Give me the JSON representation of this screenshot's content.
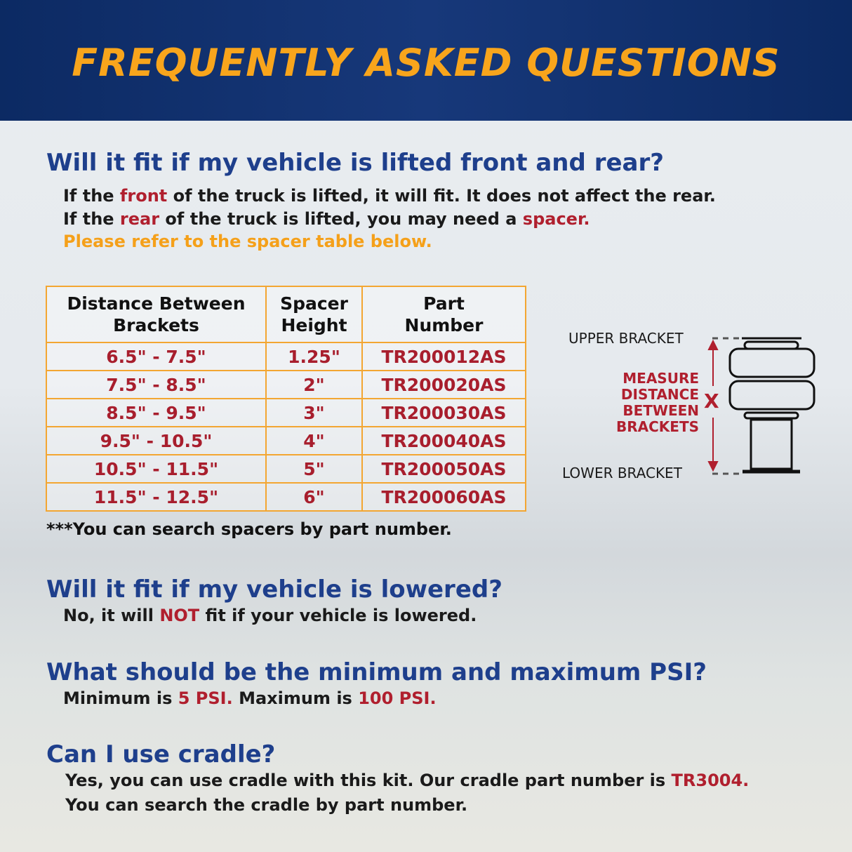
{
  "header": {
    "title": "FREQUENTLY ASKED QUESTIONS"
  },
  "q1": {
    "question": "Will it fit if my vehicle is lifted front and rear?",
    "line1": [
      "If the ",
      "front",
      " of the truck is lifted, it will fit. It does not affect the rear."
    ],
    "line2": [
      "If the ",
      "rear",
      " of the truck is lifted, you may need a ",
      "spacer."
    ],
    "line3": "Please refer to the spacer table below."
  },
  "table": {
    "headers": [
      "Distance Between Brackets",
      "Spacer Height",
      "Part Number"
    ],
    "rows": [
      [
        "6.5\" - 7.5\"",
        "1.25\"",
        "TR200012AS"
      ],
      [
        "7.5\" - 8.5\"",
        "2\"",
        "TR200020AS"
      ],
      [
        "8.5\" - 9.5\"",
        "3\"",
        "TR200030AS"
      ],
      [
        "9.5\" - 10.5\"",
        "4\"",
        "TR200040AS"
      ],
      [
        "10.5\" - 11.5\"",
        "5\"",
        "TR200050AS"
      ],
      [
        "11.5\" - 12.5\"",
        "6\"",
        "TR200060AS"
      ]
    ],
    "note": "***You can search spacers by part number."
  },
  "diagram": {
    "upper": "UPPER BRACKET",
    "lower": "LOWER BRACKET",
    "measure": [
      "MEASURE",
      "DISTANCE",
      "BETWEEN",
      "BRACKETS"
    ],
    "x": "X"
  },
  "q2": {
    "question": "Will it fit if my vehicle is lowered?",
    "line1": [
      "No, it will ",
      "NOT",
      " fit if your vehicle is lowered."
    ]
  },
  "q3": {
    "question": "What should be the minimum and maximum PSI?",
    "line1": [
      "Minimum is ",
      "5 PSI.",
      " Maximum is ",
      "100 PSI."
    ]
  },
  "q4": {
    "question": "Can I use cradle?",
    "line1": [
      "Yes, you can use cradle with this kit. Our cradle part number is ",
      "TR3004."
    ],
    "line2": "You can search the cradle by part number."
  },
  "colors": {
    "navy": "#0c2a63",
    "title": "#f8a51c",
    "question": "#1e3f8c",
    "highlight": "#b01f2e",
    "table_border": "#f3a632"
  }
}
